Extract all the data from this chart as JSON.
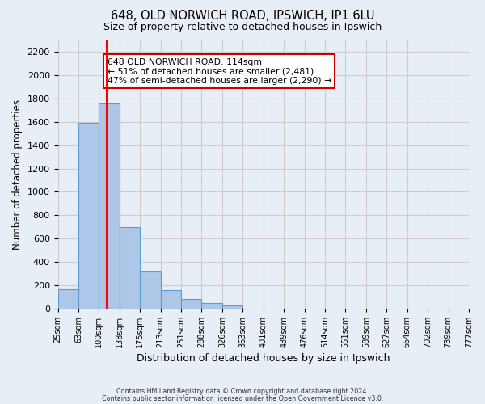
{
  "title": "648, OLD NORWICH ROAD, IPSWICH, IP1 6LU",
  "subtitle": "Size of property relative to detached houses in Ipswich",
  "xlabel": "Distribution of detached houses by size in Ipswich",
  "ylabel": "Number of detached properties",
  "bin_labels": [
    "25sqm",
    "63sqm",
    "100sqm",
    "138sqm",
    "175sqm",
    "213sqm",
    "251sqm",
    "288sqm",
    "326sqm",
    "363sqm",
    "401sqm",
    "439sqm",
    "476sqm",
    "514sqm",
    "551sqm",
    "589sqm",
    "627sqm",
    "664sqm",
    "702sqm",
    "739sqm",
    "777sqm"
  ],
  "bar_heights": [
    160,
    1590,
    1760,
    700,
    315,
    155,
    80,
    45,
    25,
    0,
    0,
    0,
    0,
    0,
    0,
    0,
    0,
    0,
    0,
    0
  ],
  "bar_color": "#aec6e8",
  "bar_edge_color": "#5a9fd4",
  "ylim": [
    0,
    2300
  ],
  "yticks": [
    0,
    200,
    400,
    600,
    800,
    1000,
    1200,
    1400,
    1600,
    1800,
    2000,
    2200
  ],
  "red_line_bin": 2,
  "annotation_text": "648 OLD NORWICH ROAD: 114sqm\n← 51% of detached houses are smaller (2,481)\n47% of semi-detached houses are larger (2,290) →",
  "annotation_box_color": "#ffffff",
  "annotation_box_edge_color": "#cc0000",
  "grid_color": "#cccccc",
  "bg_color": "#e8eef5",
  "footer_line1": "Contains HM Land Registry data © Crown copyright and database right 2024.",
  "footer_line2": "Contains public sector information licensed under the Open Government Licence v3.0."
}
